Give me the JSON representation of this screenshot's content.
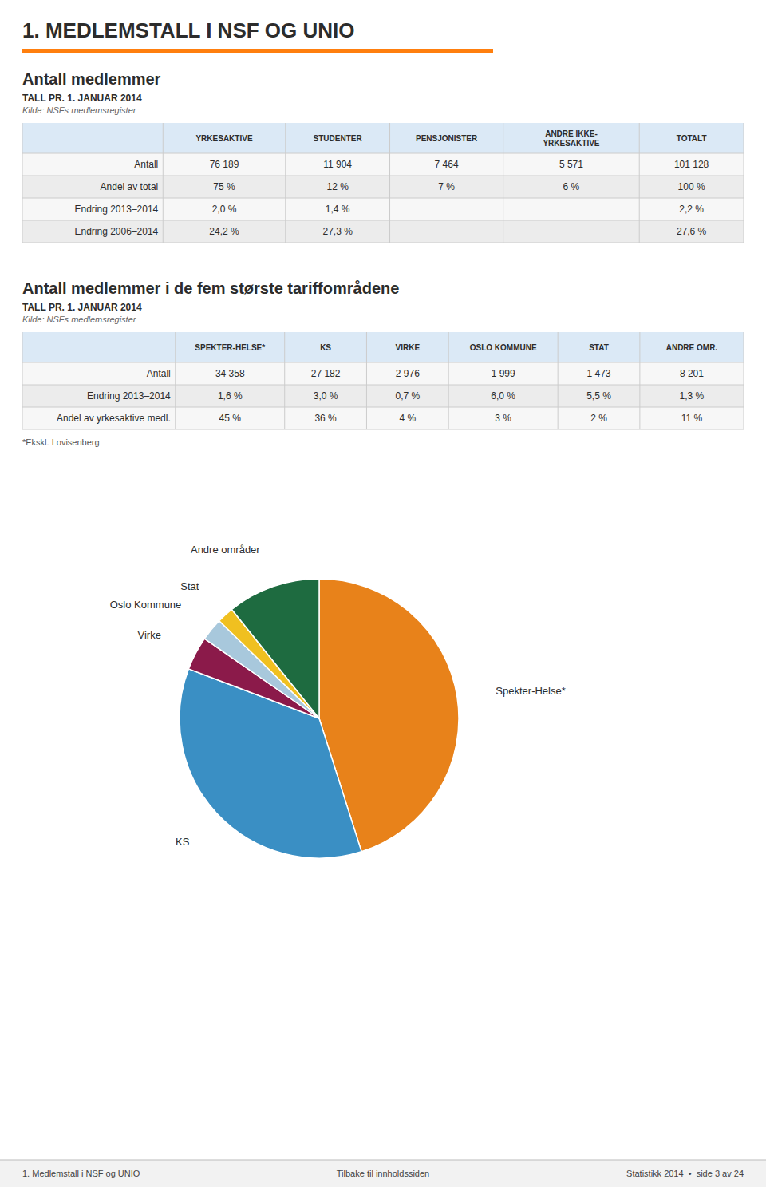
{
  "title": "1. MEDLEMSTALL I NSF OG UNIO",
  "chart_data": [
    {
      "type": "table",
      "title": "Antall medlemmer",
      "subtitle": "TALL PR. 1. JANUAR 2014",
      "source": "Kilde: NSFs medlemsregister",
      "columns": [
        null,
        "YRKESAKTIVE",
        "STUDENTER",
        "PENSJONISTER",
        "ANDRE IKKE-\nYRKESAKTIVE",
        "TOTALT"
      ],
      "rows": [
        [
          "Antall",
          "76 189",
          "11 904",
          "7 464",
          "5 571",
          "101 128"
        ],
        [
          "Andel av total",
          "75 %",
          "12 %",
          "7 %",
          "6 %",
          "100 %"
        ],
        [
          "Endring 2013–2014",
          "2,0 %",
          "1,4 %",
          null,
          null,
          "2,2 %"
        ],
        [
          "Endring 2006–2014",
          "24,2 %",
          "27,3 %",
          null,
          null,
          "27,6 %"
        ]
      ]
    },
    {
      "type": "table",
      "title": "Antall medlemmer i de fem største tariffområdene",
      "subtitle": "TALL PR. 1. JANUAR 2014",
      "source": "Kilde: NSFs medlemsregister",
      "columns": [
        null,
        "SPEKTER-HELSE*",
        "KS",
        "VIRKE",
        "OSLO KOMMUNE",
        "STAT",
        "ANDRE OMR."
      ],
      "rows": [
        [
          "Antall",
          "34 358",
          "27 182",
          "2 976",
          "1 999",
          "1 473",
          "8 201"
        ],
        [
          "Endring 2013–2014",
          "1,6 %",
          "3,0 %",
          "0,7 %",
          "6,0 %",
          "5,5 %",
          "1,3 %"
        ],
        [
          "Andel av yrkesaktive medl.",
          "45 %",
          "36 %",
          "4 %",
          "3 %",
          "2 %",
          "11 %"
        ]
      ],
      "footnote": "*Ekskl. Lovisenberg"
    },
    {
      "type": "pie",
      "categories": [
        "Spekter-Helse*",
        "KS",
        "Virke",
        "Oslo Kommune",
        "Stat",
        "Andre områder"
      ],
      "values": [
        34358,
        27182,
        2976,
        1999,
        1473,
        8201
      ],
      "colors": [
        "#E8821A",
        "#3A8FC4",
        "#8B1A4A",
        "#A8C8DC",
        "#F0C020",
        "#1E6B40"
      ]
    }
  ],
  "footer": {
    "left": "1. Medlemstall i NSF og UNIO",
    "center": "Tilbake til innholdssiden",
    "right": "Statistikk 2014  •  side 3 av 24"
  }
}
